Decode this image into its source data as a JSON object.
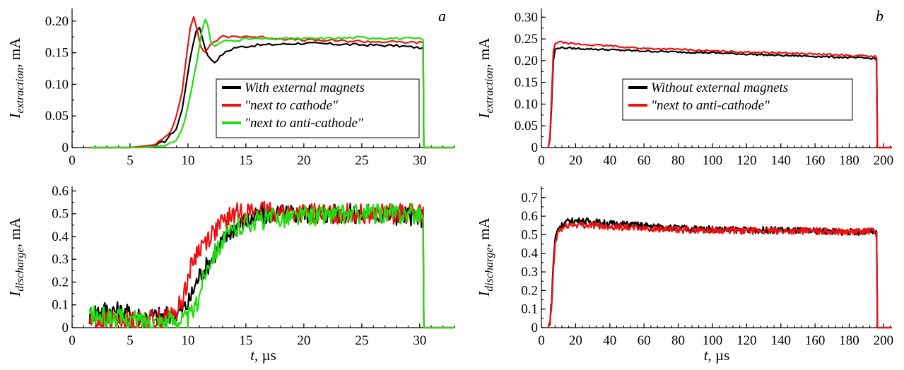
{
  "chart_data": [
    {
      "id": "a_top",
      "type": "line",
      "panel_label": "a",
      "ylabel_main": "I",
      "ylabel_sub": "extraction",
      "ylabel_unit": ", mA",
      "xlim": [
        0,
        33
      ],
      "ylim": [
        0,
        0.22
      ],
      "x_ticks": [
        0,
        5,
        10,
        15,
        20,
        25,
        30
      ],
      "y_ticks": [
        0,
        0.05,
        0.1,
        0.15,
        0.2
      ],
      "y_tick_labels": [
        "0",
        "0.05",
        "0.10",
        "0.15",
        "0.20"
      ],
      "legend": {
        "placement": "right",
        "entries": [
          "With external magnets",
          "\"next to cathode\"",
          "\"next to anti-cathode\""
        ]
      },
      "series": [
        {
          "name": "With external magnets",
          "color": "#000000",
          "x": [
            1.5,
            5,
            7,
            8,
            9,
            9.5,
            10,
            10.4,
            10.7,
            11.0,
            11.3,
            11.7,
            12.3,
            13,
            14,
            16,
            20,
            24,
            28,
            30,
            30.3,
            30.35,
            33
          ],
          "y": [
            0,
            0,
            0.002,
            0.01,
            0.03,
            0.06,
            0.12,
            0.16,
            0.185,
            0.19,
            0.17,
            0.145,
            0.135,
            0.148,
            0.158,
            0.162,
            0.165,
            0.163,
            0.161,
            0.158,
            0.156,
            0,
            0
          ]
        },
        {
          "name": "\"next to cathode\"",
          "color": "#ee1111",
          "x": [
            1.5,
            5,
            7,
            8,
            8.5,
            9,
            9.5,
            9.9,
            10.2,
            10.5,
            10.8,
            11.1,
            11.5,
            12,
            13,
            15,
            20,
            25,
            30,
            30.3,
            30.35,
            33
          ],
          "y": [
            0,
            0,
            0.004,
            0.015,
            0.025,
            0.05,
            0.09,
            0.15,
            0.19,
            0.205,
            0.185,
            0.16,
            0.15,
            0.165,
            0.175,
            0.176,
            0.17,
            0.168,
            0.166,
            0.165,
            0,
            0
          ]
        },
        {
          "name": "\"next to anti-cathode\"",
          "color": "#22dd11",
          "x": [
            1.5,
            6,
            8,
            9,
            9.7,
            10.3,
            10.8,
            11.2,
            11.5,
            11.7,
            12.0,
            12.4,
            13,
            15,
            20,
            25,
            30,
            30.3,
            30.35,
            33
          ],
          "y": [
            0,
            0,
            0.003,
            0.012,
            0.04,
            0.09,
            0.14,
            0.185,
            0.202,
            0.195,
            0.165,
            0.16,
            0.168,
            0.172,
            0.172,
            0.174,
            0.172,
            0.17,
            0,
            0
          ]
        }
      ]
    },
    {
      "id": "a_bottom",
      "type": "line",
      "ylabel_main": "I",
      "ylabel_sub": "discharge",
      "ylabel_unit": ", mA",
      "xlabel_main": "t",
      "xlabel_unit": ", µs",
      "xlim": [
        0,
        33
      ],
      "ylim": [
        0,
        0.62
      ],
      "x_ticks": [
        0,
        5,
        10,
        15,
        20,
        25,
        30
      ],
      "y_ticks": [
        0,
        0.1,
        0.2,
        0.3,
        0.4,
        0.5,
        0.6
      ],
      "y_tick_labels": [
        "0",
        "0.1",
        "0.2",
        "0.3",
        "0.4",
        "0.5",
        "0.6"
      ],
      "series": [
        {
          "name": "With external magnets",
          "color": "#000000",
          "x": [
            1.5,
            2,
            3,
            4,
            5,
            6,
            7,
            8,
            9,
            10,
            10.5,
            11,
            11.5,
            12,
            13,
            14,
            15,
            17,
            20,
            25,
            30,
            30.3,
            30.35,
            33
          ],
          "y": [
            0.05,
            0.07,
            0.08,
            0.07,
            0.06,
            0.05,
            0.05,
            0.05,
            0.06,
            0.1,
            0.17,
            0.23,
            0.26,
            0.3,
            0.38,
            0.44,
            0.47,
            0.5,
            0.5,
            0.5,
            0.49,
            0.48,
            0,
            0
          ]
        },
        {
          "name": "\"next to cathode\"",
          "color": "#ee1111",
          "x": [
            1.5,
            2,
            4,
            6,
            8,
            9,
            9.5,
            10,
            10.5,
            11,
            11.5,
            12,
            13,
            14,
            15,
            17,
            20,
            25,
            30,
            30.3,
            30.35,
            33
          ],
          "y": [
            0.03,
            0.03,
            0.03,
            0.03,
            0.04,
            0.07,
            0.12,
            0.22,
            0.3,
            0.35,
            0.38,
            0.41,
            0.46,
            0.5,
            0.51,
            0.51,
            0.5,
            0.5,
            0.5,
            0.5,
            0,
            0
          ]
        },
        {
          "name": "\"next to anti-cathode\"",
          "color": "#22dd11",
          "x": [
            1.5,
            2,
            4,
            6,
            8,
            10,
            10.8,
            11.2,
            11.6,
            12,
            13,
            14,
            15,
            17,
            20,
            25,
            30,
            30.3,
            30.35,
            33
          ],
          "y": [
            0.06,
            0.05,
            0.04,
            0.03,
            0.03,
            0.04,
            0.1,
            0.2,
            0.26,
            0.31,
            0.38,
            0.43,
            0.46,
            0.48,
            0.49,
            0.5,
            0.5,
            0.5,
            0,
            0
          ]
        }
      ]
    },
    {
      "id": "b_top",
      "type": "line",
      "panel_label": "b",
      "ylabel_main": "I",
      "ylabel_sub": "extraction",
      "ylabel_unit": ", mA",
      "xlim": [
        0,
        205
      ],
      "ylim": [
        0,
        0.32
      ],
      "x_ticks": [
        0,
        20,
        40,
        60,
        80,
        100,
        120,
        140,
        160,
        180,
        200
      ],
      "y_ticks": [
        0,
        0.05,
        0.1,
        0.15,
        0.2,
        0.25,
        0.3
      ],
      "y_tick_labels": [
        "0",
        "0.05",
        "0.10",
        "0.15",
        "0.20",
        "0.25",
        "0.30"
      ],
      "legend": {
        "placement": "center",
        "entries": [
          "Without external magnets",
          "\"next to anti-cathode\""
        ]
      },
      "series": [
        {
          "name": "Without external magnets",
          "color": "#000000",
          "x": [
            4,
            5,
            6,
            7,
            8,
            10,
            20,
            40,
            60,
            80,
            100,
            120,
            140,
            160,
            180,
            195,
            196,
            196.5,
            205
          ],
          "y": [
            0,
            0.02,
            0.1,
            0.2,
            0.225,
            0.23,
            0.228,
            0.225,
            0.222,
            0.22,
            0.218,
            0.215,
            0.212,
            0.21,
            0.207,
            0.205,
            0.2,
            0,
            0
          ]
        },
        {
          "name": "\"next to anti-cathode\"",
          "color": "#ee1111",
          "x": [
            4,
            5,
            6,
            7,
            8,
            10,
            20,
            40,
            60,
            80,
            100,
            120,
            140,
            160,
            180,
            195,
            196,
            196.5,
            205
          ],
          "y": [
            0,
            0.025,
            0.12,
            0.22,
            0.24,
            0.243,
            0.238,
            0.234,
            0.228,
            0.226,
            0.222,
            0.22,
            0.218,
            0.215,
            0.212,
            0.21,
            0.205,
            0,
            0
          ]
        }
      ]
    },
    {
      "id": "b_bottom",
      "type": "line",
      "ylabel_main": "I",
      "ylabel_sub": "discharge",
      "ylabel_unit": ", mA",
      "xlabel_main": "t",
      "xlabel_unit": ", µs",
      "xlim": [
        0,
        205
      ],
      "ylim": [
        0,
        0.76
      ],
      "x_ticks": [
        0,
        20,
        40,
        60,
        80,
        100,
        120,
        140,
        160,
        180,
        200
      ],
      "y_ticks": [
        0,
        0.1,
        0.2,
        0.3,
        0.4,
        0.5,
        0.6,
        0.7
      ],
      "y_tick_labels": [
        "0",
        "0.1",
        "0.2",
        "0.3",
        "0.4",
        "0.5",
        "0.6",
        "0.7"
      ],
      "series": [
        {
          "name": "Without external magnets",
          "color": "#000000",
          "x": [
            4,
            5,
            6,
            7,
            8,
            10,
            15,
            20,
            30,
            40,
            50,
            60,
            70,
            80,
            100,
            120,
            140,
            160,
            180,
            195,
            196,
            196.5,
            205
          ],
          "y": [
            0,
            0.03,
            0.15,
            0.35,
            0.48,
            0.54,
            0.57,
            0.575,
            0.57,
            0.56,
            0.555,
            0.55,
            0.54,
            0.535,
            0.53,
            0.525,
            0.525,
            0.52,
            0.515,
            0.515,
            0.5,
            0,
            0
          ]
        },
        {
          "name": "\"next to anti-cathode\"",
          "color": "#ee1111",
          "x": [
            4,
            5,
            6,
            7,
            8,
            10,
            15,
            20,
            30,
            40,
            50,
            60,
            70,
            80,
            100,
            120,
            140,
            160,
            180,
            195,
            196,
            196.5,
            205
          ],
          "y": [
            0,
            0.02,
            0.12,
            0.3,
            0.45,
            0.52,
            0.55,
            0.555,
            0.55,
            0.545,
            0.54,
            0.535,
            0.53,
            0.525,
            0.525,
            0.52,
            0.52,
            0.52,
            0.515,
            0.52,
            0.5,
            0,
            0
          ]
        }
      ]
    }
  ]
}
